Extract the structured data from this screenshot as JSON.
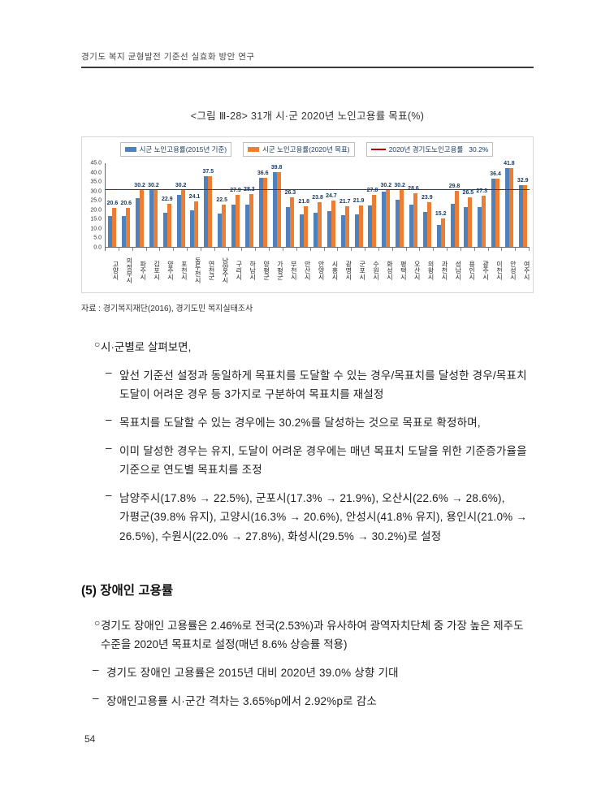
{
  "page": {
    "header_title": "경기도 복지 균형발전 기준선 실효화 방안 연구",
    "page_number": "54"
  },
  "figure": {
    "caption": "<그림 Ⅲ-28> 31개 시·군 2020년 노인고용률 목표(%)",
    "source": "자료 : 경기복지재단(2016), 경기도민 복지실태조사"
  },
  "chart_data": {
    "type": "bar",
    "title": "31개 시·군 2020년 노인고용률 목표(%)",
    "categories": [
      "고양시",
      "의정부시",
      "파주시",
      "김포시",
      "양주시",
      "포천시",
      "동두천시",
      "연천군",
      "남양주시",
      "구리시",
      "하남시",
      "양평군",
      "가평군",
      "부천시",
      "안산시",
      "안양시",
      "시흥시",
      "광명시",
      "군포시",
      "수원시",
      "화성시",
      "평택시",
      "오산시",
      "의왕시",
      "과천시",
      "성남시",
      "용인시",
      "광주시",
      "이천시",
      "안성시",
      "여주시"
    ],
    "series": [
      {
        "name": "시군 노인고용률(2015년 기준)",
        "color": "#4f81bd",
        "values": [
          16.3,
          16.5,
          26.0,
          30.2,
          18.3,
          27.6,
          19.6,
          37.5,
          17.8,
          22.3,
          22.7,
          36.6,
          39.8,
          21.0,
          17.2,
          18.3,
          19.0,
          16.7,
          17.3,
          22.0,
          29.5,
          24.9,
          22.6,
          18.4,
          11.7,
          22.9,
          21.0,
          21.0,
          36.4,
          41.8,
          32.9
        ]
      },
      {
        "name": "시군 노인고용률(2020년 목표)",
        "color": "#ed7d31",
        "values": [
          20.6,
          20.6,
          30.2,
          30.2,
          22.9,
          30.2,
          24.1,
          37.5,
          22.5,
          27.9,
          28.3,
          36.6,
          39.8,
          26.3,
          21.8,
          23.8,
          24.7,
          21.7,
          21.9,
          27.8,
          30.2,
          30.2,
          28.6,
          23.9,
          15.2,
          29.8,
          26.5,
          27.3,
          36.4,
          41.8,
          32.9
        ]
      }
    ],
    "reference_line": {
      "label": "2020년 경기도노인고용률",
      "value_label": "30.2%",
      "value": 30.2,
      "color": "#c00000"
    },
    "ylim": [
      0,
      45
    ],
    "yticks": [
      "0.0",
      "5.0",
      "10.0",
      "15.0",
      "20.0",
      "25.0",
      "30.0",
      "35.0",
      "40.0",
      "45.0"
    ],
    "legend_position": "top",
    "grid": false
  },
  "content": {
    "bullet1": {
      "marker": "○",
      "text": "시·군별로 살펴보면,"
    },
    "sub_bullets": [
      {
        "marker": "–",
        "text": "앞선 기준선 설정과 동일하게 목표치를 도달할 수 있는 경우/목표치를 달성한 경우/목표치 도달이 어려운 경우 등 3가지로 구분하여 목표치를 재설정"
      },
      {
        "marker": "–",
        "text": "목표치를 도달할 수 있는 경우에는 30.2%를 달성하는 것으로 목표로 확정하며,"
      },
      {
        "marker": "–",
        "text": "이미 달성한 경우는 유지, 도달이 어려운 경우에는 매년 목표치 도달을 위한 기준증가율을 기준으로 연도별 목표치를 조정"
      },
      {
        "marker": "–",
        "text": "남양주시(17.8% → 22.5%), 군포시(17.3% → 21.9%), 오산시(22.6% → 28.6%), 가평군(39.8% 유지), 고양시(16.3% → 20.6%), 안성시(41.8% 유지), 용인시(21.0% → 26.5%), 수원시(22.0% → 27.8%), 화성시(29.5% → 30.2%)로 설정"
      }
    ],
    "section5": {
      "heading": "(5) 장애인 고용률",
      "bullet": {
        "marker": "○",
        "text": "경기도 장애인 고용률은 2.46%로 전국(2.53%)과 유사하여 광역자치단체 중 가장 높은 제주도 수준을 2020년 목표치로 설정(매년 8.6% 상승률 적용)"
      },
      "sub_bullets": [
        {
          "marker": "–",
          "text": "경기도 장애인 고용률은 2015년 대비 2020년 39.0% 상향 기대"
        },
        {
          "marker": "–",
          "text": "장애인고용률 시·군간 격차는 3.65%p에서 2.92%p로 감소"
        }
      ]
    }
  }
}
